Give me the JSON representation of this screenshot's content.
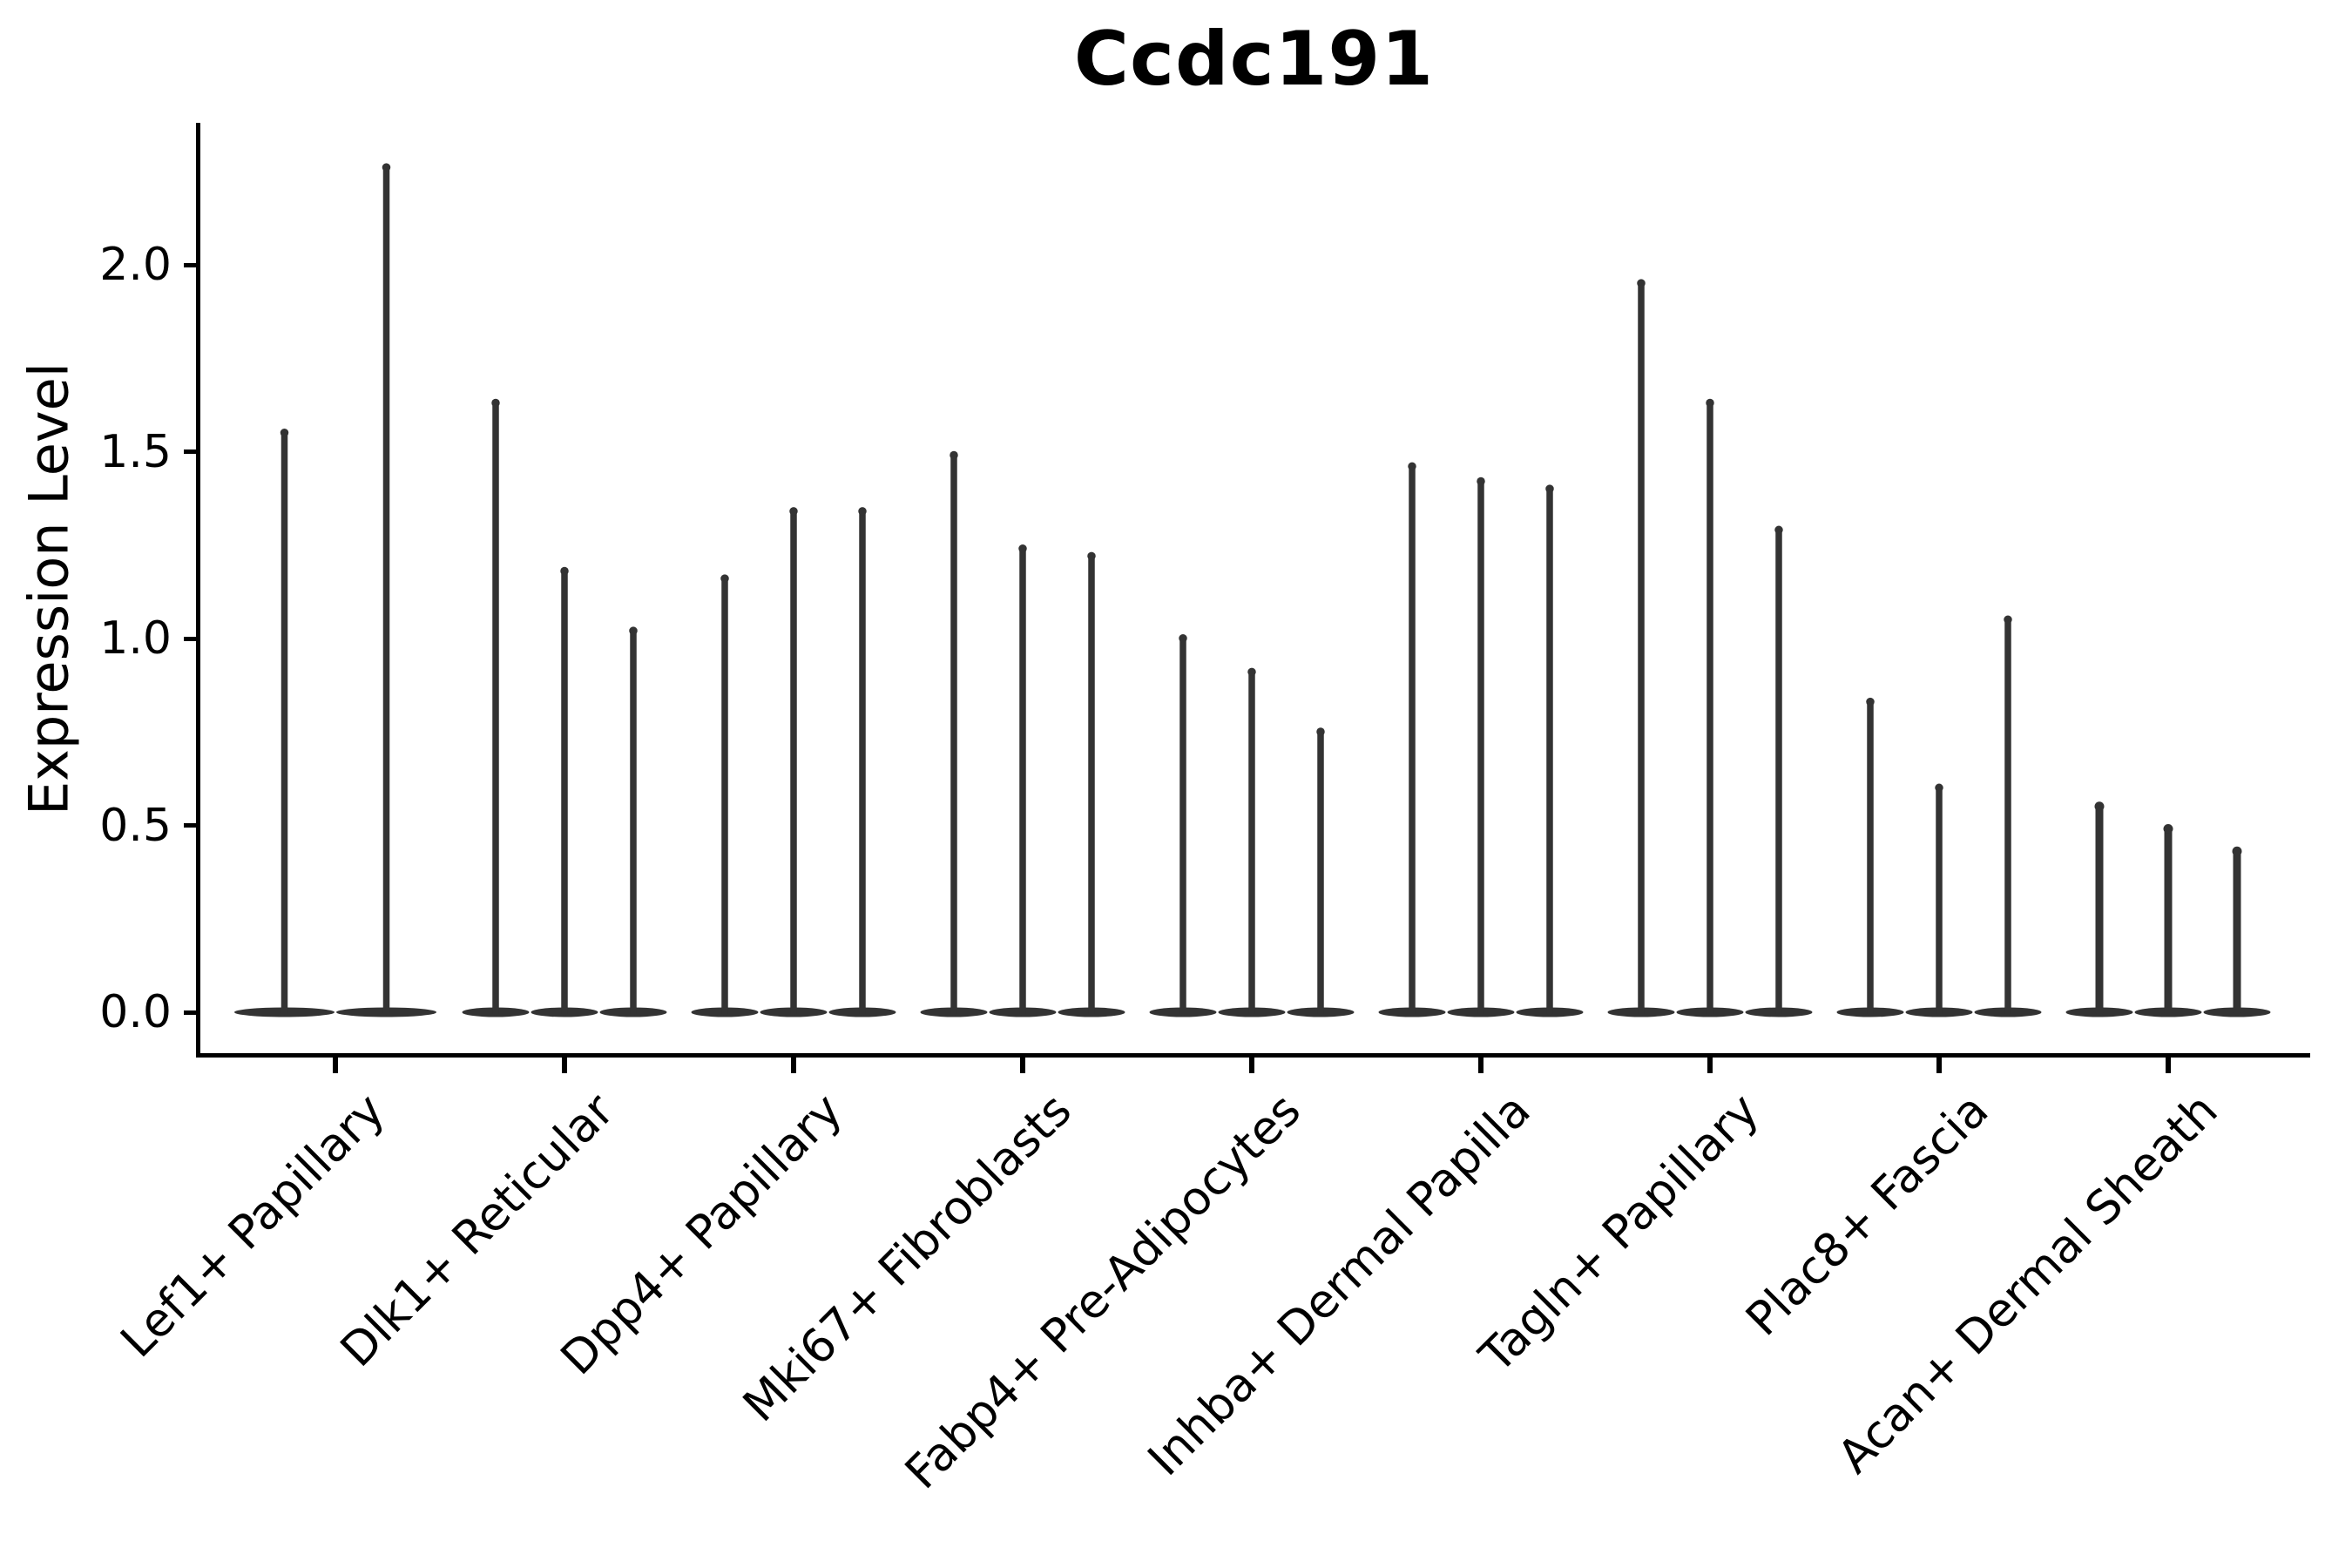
{
  "chart_data": {
    "type": "violin",
    "title": "Ccdc191",
    "ylabel": "Expression Level",
    "xlabel": "",
    "yticks": [
      "0.0",
      "0.5",
      "1.0",
      "1.5",
      "2.0"
    ],
    "ytick_values": [
      0.0,
      0.5,
      1.0,
      1.5,
      2.0
    ],
    "ylim": [
      -0.11,
      2.38
    ],
    "grid": false,
    "legend": "none",
    "violin_color": "#333333",
    "axis_color": "#000000",
    "categories": [
      "Lef1+ Papillary",
      "Dlk1+ Reticular",
      "Dpp4+ Papillary",
      "Mki67+ Fibroblasts",
      "Fabp4+ Pre-Adipocytes",
      "Inhba+ Dermal Papilla",
      "Tagln+ Papillary",
      "Plac8+ Fascia",
      "Acan+ Dermal Sheath"
    ],
    "groups": [
      {
        "label": "Lef1+ Papillary",
        "violin_max_values": [
          1.56,
          2.27
        ]
      },
      {
        "label": "Dlk1+ Reticular",
        "violin_max_values": [
          1.64,
          1.19,
          1.03
        ]
      },
      {
        "label": "Dpp4+ Papillary",
        "violin_max_values": [
          1.17,
          1.35,
          1.35
        ]
      },
      {
        "label": "Mki67+ Fibroblasts",
        "violin_max_values": [
          1.5,
          1.25,
          1.23
        ]
      },
      {
        "label": "Fabp4+ Pre-Adipocytes",
        "violin_max_values": [
          1.01,
          0.92,
          0.76
        ]
      },
      {
        "label": "Inhba+ Dermal Papilla",
        "violin_max_values": [
          1.47,
          1.43,
          1.41
        ]
      },
      {
        "label": "Tagln+ Papillary",
        "violin_max_values": [
          1.96,
          1.64,
          1.3
        ]
      },
      {
        "label": "Plac8+ Fascia",
        "violin_max_values": [
          0.84,
          0.61,
          1.06
        ]
      },
      {
        "label": "Acan+ Dermal Sheath",
        "violin_max_values": [
          0.56,
          0.5,
          0.44
        ]
      }
    ],
    "violins_baseline_value": 0.0,
    "description": "Stacked-spike violin plot; each group shows 2-3 thin violins whose mass is concentrated at 0 with a narrow spike up to its max expression value."
  }
}
